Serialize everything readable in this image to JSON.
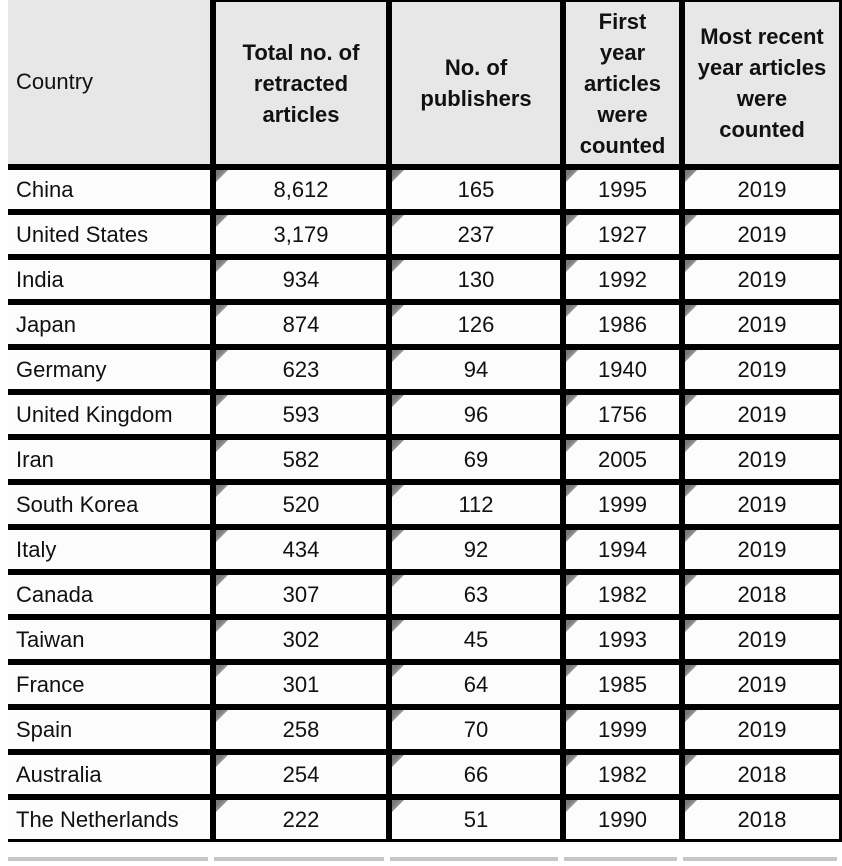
{
  "chart_data": {
    "type": "table",
    "columns": [
      "Country",
      "Total no. of retracted articles",
      "No. of publishers",
      "First year articles were counted",
      "Most recent year articles were counted"
    ],
    "rows": [
      {
        "country": "China",
        "total_retracted": "8,612",
        "publishers": "165",
        "first_year": "1995",
        "recent_year": "2019"
      },
      {
        "country": "United States",
        "total_retracted": "3,179",
        "publishers": "237",
        "first_year": "1927",
        "recent_year": "2019"
      },
      {
        "country": "India",
        "total_retracted": "934",
        "publishers": "130",
        "first_year": "1992",
        "recent_year": "2019"
      },
      {
        "country": "Japan",
        "total_retracted": "874",
        "publishers": "126",
        "first_year": "1986",
        "recent_year": "2019"
      },
      {
        "country": "Germany",
        "total_retracted": "623",
        "publishers": "94",
        "first_year": "1940",
        "recent_year": "2019"
      },
      {
        "country": "United Kingdom",
        "total_retracted": "593",
        "publishers": "96",
        "first_year": "1756",
        "recent_year": "2019"
      },
      {
        "country": "Iran",
        "total_retracted": "582",
        "publishers": "69",
        "first_year": "2005",
        "recent_year": "2019"
      },
      {
        "country": "South Korea",
        "total_retracted": "520",
        "publishers": "112",
        "first_year": "1999",
        "recent_year": "2019"
      },
      {
        "country": "Italy",
        "total_retracted": "434",
        "publishers": "92",
        "first_year": "1994",
        "recent_year": "2019"
      },
      {
        "country": "Canada",
        "total_retracted": "307",
        "publishers": "63",
        "first_year": "1982",
        "recent_year": "2018"
      },
      {
        "country": "Taiwan",
        "total_retracted": "302",
        "publishers": "45",
        "first_year": "1993",
        "recent_year": "2019"
      },
      {
        "country": "France",
        "total_retracted": "301",
        "publishers": "64",
        "first_year": "1985",
        "recent_year": "2019"
      },
      {
        "country": "Spain",
        "total_retracted": "258",
        "publishers": "70",
        "first_year": "1999",
        "recent_year": "2019"
      },
      {
        "country": "Australia",
        "total_retracted": "254",
        "publishers": "66",
        "first_year": "1982",
        "recent_year": "2018"
      },
      {
        "country": "The Netherlands",
        "total_retracted": "222",
        "publishers": "51",
        "first_year": "1990",
        "recent_year": "2018"
      }
    ]
  },
  "colors": {
    "header_bg": "#e8e7e7",
    "cell_bg": "#fcfcfc",
    "border": "#000000",
    "text": "#111111",
    "flag_dark": "#7a7a7a",
    "flag_light": "#c2c2c2",
    "next_row_hint": "#c6c6c6"
  }
}
